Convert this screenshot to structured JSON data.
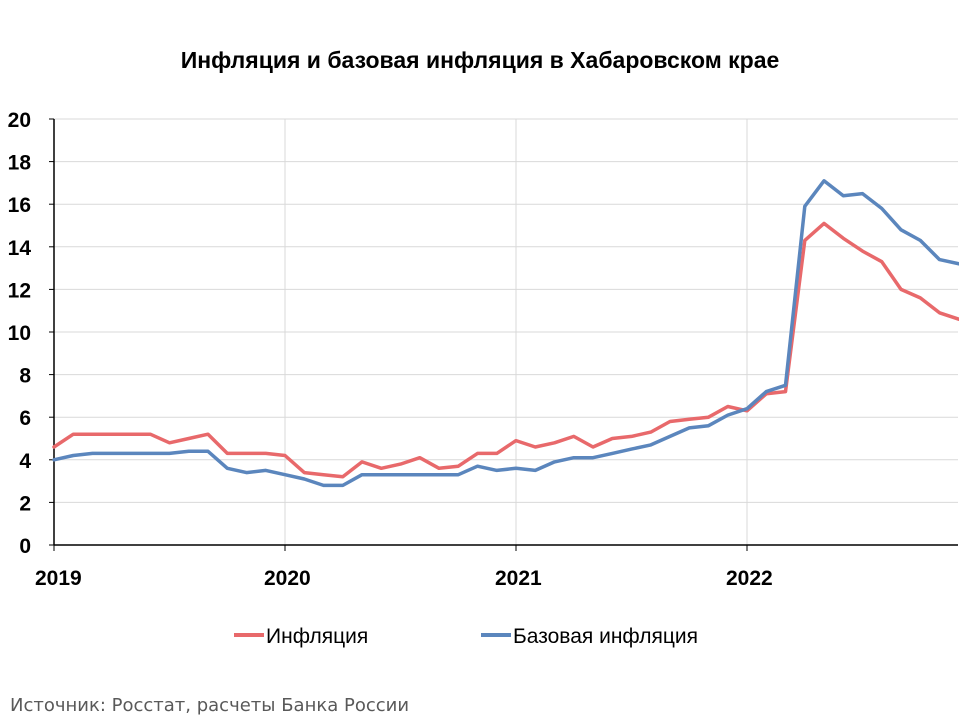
{
  "chart_data": {
    "type": "line",
    "title": "Инфляция и базовая инфляция в Хабаровском крае",
    "source": "Источник: Росстат, расчеты Банка России",
    "ylim": [
      0,
      20
    ],
    "y_ticks": [
      "0",
      "2",
      "4",
      "6",
      "8",
      "10",
      "12",
      "14",
      "16",
      "18",
      "20"
    ],
    "x_ticks": [
      "2019",
      "2020",
      "2021",
      "2022"
    ],
    "x_start": "2019-01",
    "x_end": "2022-11",
    "grid": true,
    "legend_position": "bottom",
    "colors": {
      "inflation": "#e8696b",
      "core": "#5b86bd",
      "grid": "#d9d9d9",
      "axis": "#000000"
    },
    "series": [
      {
        "name": "Инфляция",
        "color": "#e8696b",
        "values": [
          4.6,
          5.2,
          5.2,
          5.2,
          5.2,
          5.2,
          4.8,
          5.0,
          5.2,
          4.3,
          4.3,
          4.3,
          4.2,
          3.4,
          3.3,
          3.2,
          3.9,
          3.6,
          3.8,
          4.1,
          3.6,
          3.7,
          4.3,
          4.3,
          4.9,
          4.6,
          4.8,
          5.1,
          4.6,
          5.0,
          5.1,
          5.3,
          5.8,
          5.9,
          6.0,
          6.5,
          6.3,
          7.1,
          7.2,
          14.3,
          15.1,
          14.4,
          13.8,
          13.3,
          12.0,
          11.6,
          10.9,
          10.6
        ]
      },
      {
        "name": "Базовая инфляция",
        "color": "#5b86bd",
        "values": [
          4.0,
          4.2,
          4.3,
          4.3,
          4.3,
          4.3,
          4.3,
          4.4,
          4.4,
          3.6,
          3.4,
          3.5,
          3.3,
          3.1,
          2.8,
          2.8,
          3.3,
          3.3,
          3.3,
          3.3,
          3.3,
          3.3,
          3.7,
          3.5,
          3.6,
          3.5,
          3.9,
          4.1,
          4.1,
          4.3,
          4.5,
          4.7,
          5.1,
          5.5,
          5.6,
          6.1,
          6.4,
          7.2,
          7.5,
          15.9,
          17.1,
          16.4,
          16.5,
          15.8,
          14.8,
          14.3,
          13.4,
          13.2
        ]
      }
    ]
  }
}
